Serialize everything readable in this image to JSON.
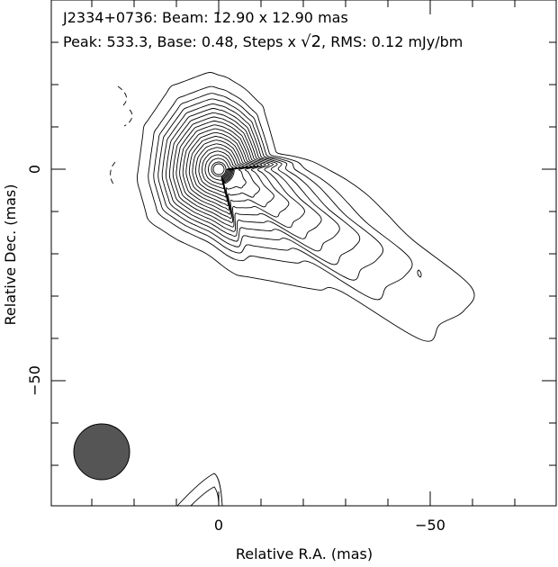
{
  "header": {
    "line1": "J2334+0736: Beam: 12.90 x 12.90 mas",
    "line2_prefix": "Peak: 533.3, Base: 0.48, Steps x ",
    "line2_sqrt": "√2",
    "line2_suffix": ", RMS: 0.12 mJy/bm"
  },
  "chart_data": {
    "type": "contour",
    "source": "J2334+0736",
    "beam_mas": [
      12.9,
      12.9
    ],
    "peak": 533.3,
    "base": 0.48,
    "step_factor": "sqrt(2)",
    "rms_mJy_per_beam": 0.12,
    "xlabel": "Relative R.A. (mas)",
    "ylabel": "Relative Dec. (mas)",
    "xlim": [
      42,
      -79
    ],
    "ylim": [
      -80,
      40
    ],
    "x_tick_labels": [
      "0",
      "−50"
    ],
    "y_tick_labels": [
      "0",
      "−50"
    ],
    "peak_position": [
      0,
      0
    ],
    "jet_direction": "south-west"
  },
  "colors": {
    "beam_fill": "#555555",
    "line": "#000000"
  }
}
